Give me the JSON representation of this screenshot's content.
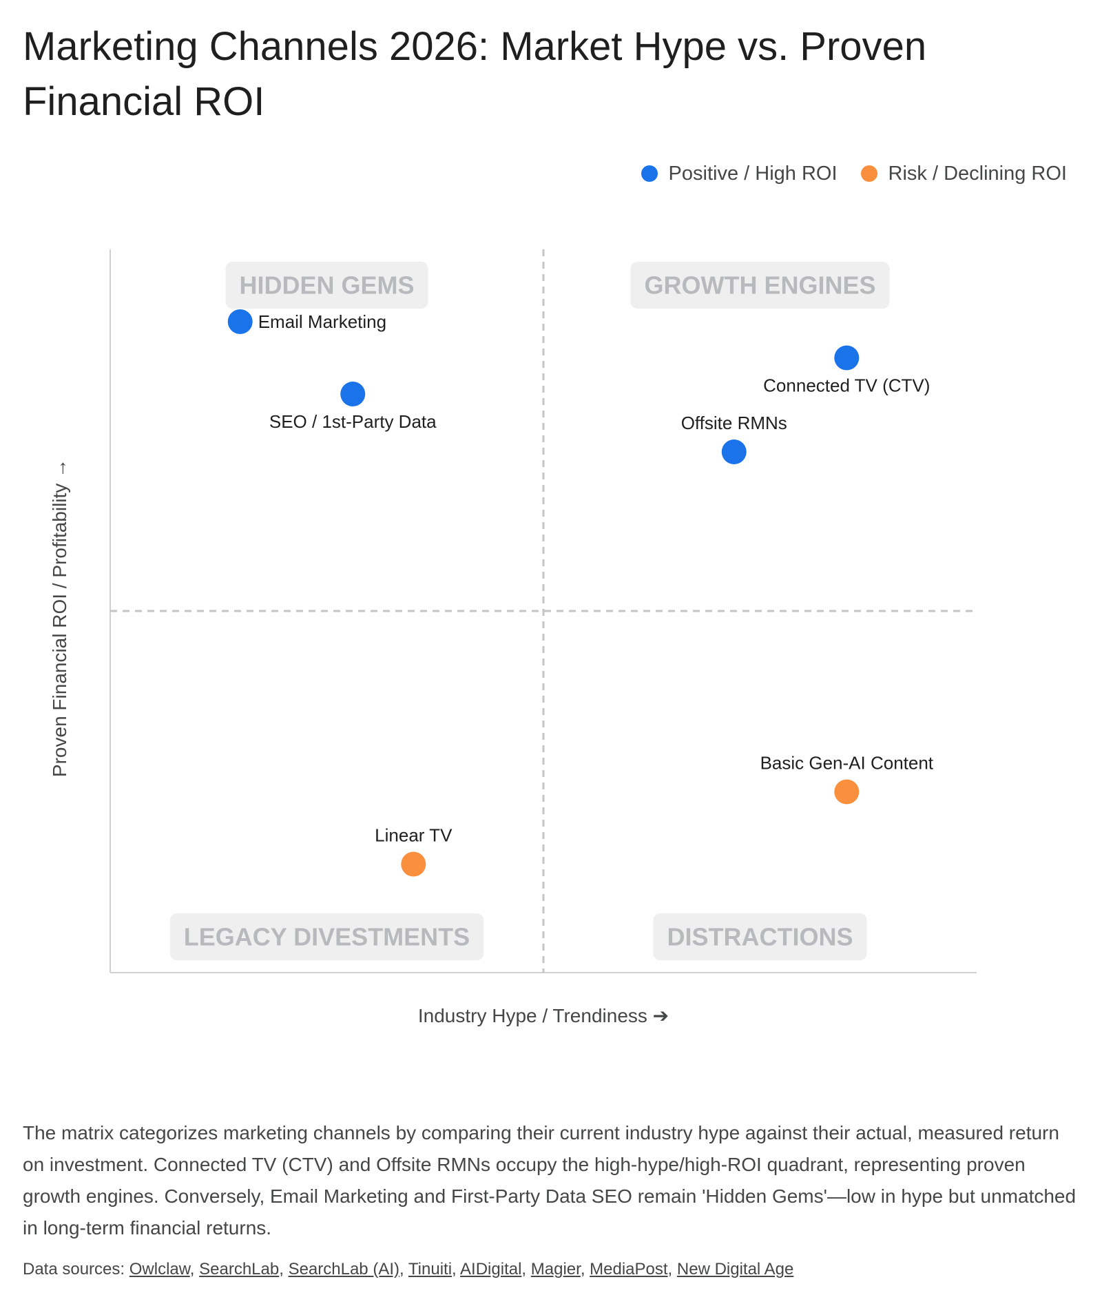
{
  "title": "Marketing Channels 2026: Market Hype vs. Proven Financial ROI",
  "legend": {
    "items": [
      {
        "label": "Positive / High ROI",
        "color": "#1a73e8"
      },
      {
        "label": "Risk / Declining ROI",
        "color": "#fa903e"
      }
    ]
  },
  "chart_data": {
    "type": "scatter",
    "title": "Marketing Channels 2026: Market Hype vs. Proven Financial ROI",
    "xlabel": "Industry Hype / Trendiness",
    "ylabel": "Proven Financial ROI / Profitability",
    "xlim": [
      0,
      100
    ],
    "ylim": [
      0,
      100
    ],
    "grid": false,
    "legend_position": "top-right",
    "quadrant_dividers": {
      "x": 50,
      "y": 50
    },
    "quadrants": {
      "top_left": "HIDDEN GEMS",
      "top_right": "GROWTH ENGINES",
      "bottom_left": "LEGACY DIVESTMENTS",
      "bottom_right": "DISTRACTIONS"
    },
    "series": [
      {
        "name": "Positive / High ROI",
        "color": "#1a73e8",
        "points": [
          {
            "label": "Email Marketing",
            "x": 15,
            "y": 90
          },
          {
            "label": "SEO / 1st-Party Data",
            "x": 28,
            "y": 80
          },
          {
            "label": "Connected TV (CTV)",
            "x": 85,
            "y": 85
          },
          {
            "label": "Offsite RMNs",
            "x": 72,
            "y": 72
          }
        ]
      },
      {
        "name": "Risk / Declining ROI",
        "color": "#fa903e",
        "points": [
          {
            "label": "Basic Gen-AI Content",
            "x": 85,
            "y": 25
          },
          {
            "label": "Linear TV",
            "x": 35,
            "y": 15
          }
        ]
      }
    ]
  },
  "description": "The matrix categorizes marketing channels by comparing their current industry hype against their actual, measured return on investment. Connected TV (CTV) and Offsite RMNs occupy the high-hype/high-ROI quadrant, representing proven growth engines. Conversely, Email Marketing and First-Party Data SEO remain 'Hidden Gems'—low in hype but unmatched in long-term financial returns.",
  "sources": {
    "prefix": "Data sources:",
    "links": [
      "Owlclaw",
      "SearchLab",
      "SearchLab (AI)",
      "Tinuiti",
      "AIDigital",
      "Magier",
      "MediaPost",
      "New Digital Age"
    ]
  }
}
